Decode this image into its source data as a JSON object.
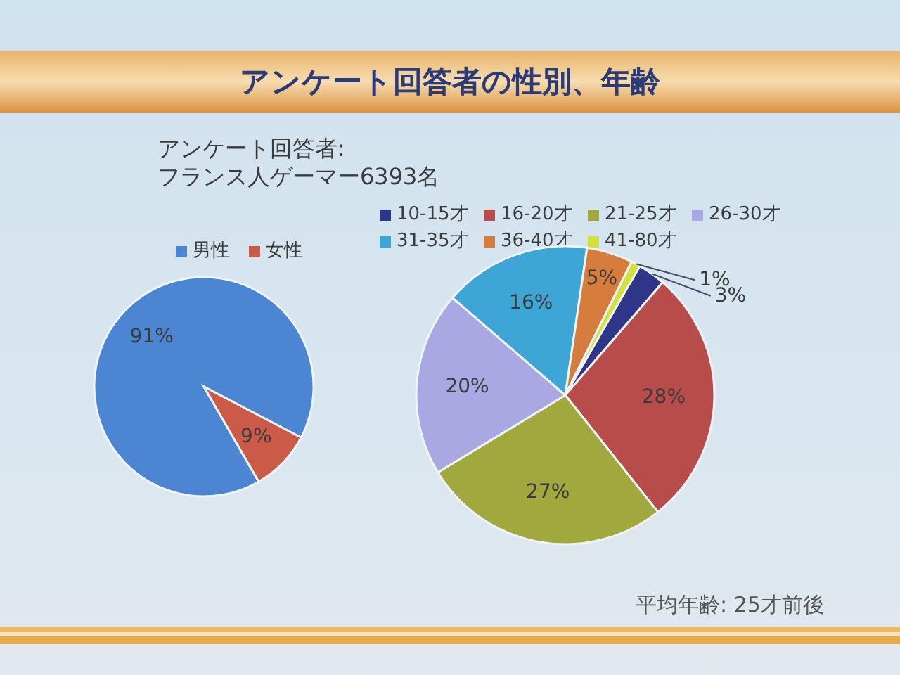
{
  "chart_data": [
    {
      "type": "pie",
      "title": "アンケート回答者の性別、年齢",
      "subtitle": "アンケート回答者:\nフランス人ゲーマー6393名",
      "categories": [
        "男性",
        "女性"
      ],
      "values": [
        91,
        9
      ],
      "colors": [
        "#4c86d2",
        "#cc5a48"
      ],
      "value_labels": [
        "91%",
        "9%"
      ],
      "legend": "top"
    },
    {
      "type": "pie",
      "categories": [
        "10-15才",
        "16-20才",
        "21-25才",
        "26-30才",
        "31-35才",
        "36-40才",
        "41-80才"
      ],
      "values": [
        3,
        28,
        27,
        20,
        16,
        5,
        1
      ],
      "colors": [
        "#2e3688",
        "#b84c4a",
        "#a0a83e",
        "#aaa8e2",
        "#3ea6d6",
        "#d67c3c",
        "#d4e03c"
      ],
      "value_labels": [
        "3%",
        "28%",
        "27%",
        "20%",
        "16%",
        "5%",
        "1%"
      ],
      "legend": "top",
      "annotations": [
        "平均年齢: 25才前後"
      ]
    }
  ]
}
